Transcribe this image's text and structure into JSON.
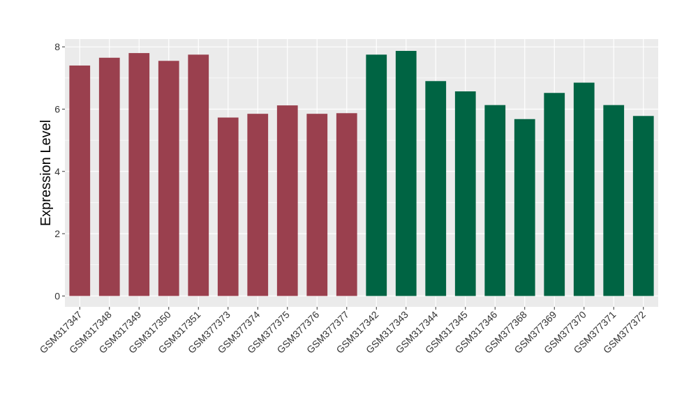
{
  "chart_data": {
    "type": "bar",
    "title": "",
    "xlabel": "",
    "ylabel": "Expression Level",
    "ylim": [
      -0.35,
      8.25
    ],
    "yticks": [
      0,
      2,
      4,
      6,
      8
    ],
    "grid": true,
    "legend": "none",
    "categories": [
      "GSM317347",
      "GSM317348",
      "GSM317349",
      "GSM317350",
      "GSM317351",
      "GSM377373",
      "GSM377374",
      "GSM377375",
      "GSM377376",
      "GSM377377",
      "GSM317342",
      "GSM317343",
      "GSM317344",
      "GSM317345",
      "GSM317346",
      "GSM377368",
      "GSM377369",
      "GSM377370",
      "GSM377371",
      "GSM377372"
    ],
    "values": [
      7.4,
      7.65,
      7.8,
      7.55,
      7.75,
      5.73,
      5.85,
      6.12,
      5.85,
      5.87,
      7.75,
      7.87,
      6.9,
      6.57,
      6.13,
      5.68,
      6.52,
      6.85,
      6.13,
      5.78
    ],
    "colors": [
      "#9a404e",
      "#9a404e",
      "#9a404e",
      "#9a404e",
      "#9a404e",
      "#9a404e",
      "#9a404e",
      "#9a404e",
      "#9a404e",
      "#9a404e",
      "#006443",
      "#006443",
      "#006443",
      "#006443",
      "#006443",
      "#006443",
      "#006443",
      "#006443",
      "#006443",
      "#006443"
    ],
    "panel_background": "#ebebeb",
    "grid_color": "#ffffff"
  }
}
